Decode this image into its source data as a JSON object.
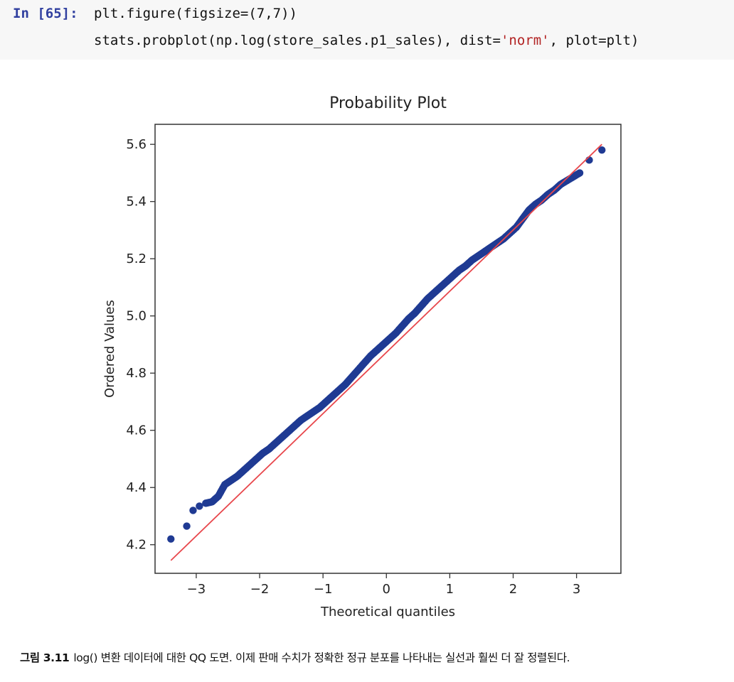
{
  "code_cell": {
    "prompt": "In [65]:",
    "line1": "plt.figure(figsize=(7,7))",
    "line2_before": "stats.probplot(np.log(store_sales.p1_sales), dist=",
    "line2_string": "'norm'",
    "line2_after": ", plot=plt)"
  },
  "caption": {
    "label": "그림 3.11",
    "text": "log() 변환 데이터에 대한 QQ 도면. 이제 판매 수치가 정확한 정규 분포를 나타내는 실선과 훨씬 더 잘 정렬된다."
  },
  "chart_data": {
    "type": "scatter",
    "title": "Probability Plot",
    "xlabel": "Theoretical quantiles",
    "ylabel": "Ordered Values",
    "xlim": [
      -3.65,
      3.7
    ],
    "ylim": [
      4.1,
      5.67
    ],
    "xticks": [
      -3,
      -2,
      -1,
      0,
      1,
      2,
      3
    ],
    "xtick_labels": [
      "−3",
      "−2",
      "−1",
      "0",
      "1",
      "2",
      "3"
    ],
    "yticks": [
      4.2,
      4.4,
      4.6,
      4.8,
      5.0,
      5.2,
      5.4,
      5.6
    ],
    "ytick_labels": [
      "4.2",
      "4.4",
      "4.6",
      "4.8",
      "5.0",
      "5.2",
      "5.4",
      "5.6"
    ],
    "grid": false,
    "point_color": "#1f3a93",
    "line_color": "#e8474c",
    "fit_line": {
      "x": [
        -3.4,
        3.4
      ],
      "y": [
        4.145,
        5.6
      ]
    },
    "series": [
      {
        "x": [
          -3.4,
          -3.15,
          -3.05,
          -2.95,
          -2.85,
          -2.75,
          -2.65,
          -2.55,
          -2.45,
          -2.35,
          -2.25,
          -2.15,
          -2.05,
          -1.95,
          -1.85,
          -1.75,
          -1.65,
          -1.55,
          -1.45,
          -1.35,
          -1.25,
          -1.15,
          -1.05,
          -0.95,
          -0.85,
          -0.75,
          -0.65,
          -0.55,
          -0.45,
          -0.35,
          -0.25,
          -0.15,
          -0.05,
          0.05,
          0.15,
          0.25,
          0.35,
          0.45,
          0.55,
          0.65,
          0.75,
          0.85,
          0.95,
          1.05,
          1.15,
          1.25,
          1.35,
          1.45,
          1.55,
          1.65,
          1.75,
          1.85,
          1.95,
          2.05,
          2.15,
          2.25,
          2.35,
          2.45,
          2.55,
          2.65,
          2.75,
          2.9,
          3.05,
          3.2,
          3.4
        ],
        "y": [
          4.22,
          4.265,
          4.32,
          4.335,
          4.345,
          4.35,
          4.37,
          4.41,
          4.425,
          4.44,
          4.46,
          4.48,
          4.5,
          4.52,
          4.535,
          4.555,
          4.575,
          4.595,
          4.615,
          4.635,
          4.65,
          4.665,
          4.68,
          4.7,
          4.72,
          4.74,
          4.76,
          4.785,
          4.81,
          4.835,
          4.86,
          4.88,
          4.9,
          4.92,
          4.94,
          4.965,
          4.99,
          5.01,
          5.035,
          5.06,
          5.08,
          5.1,
          5.12,
          5.14,
          5.16,
          5.175,
          5.195,
          5.21,
          5.225,
          5.24,
          5.255,
          5.27,
          5.29,
          5.31,
          5.34,
          5.37,
          5.39,
          5.405,
          5.425,
          5.44,
          5.46,
          5.48,
          5.5,
          5.545,
          5.58
        ]
      }
    ]
  }
}
